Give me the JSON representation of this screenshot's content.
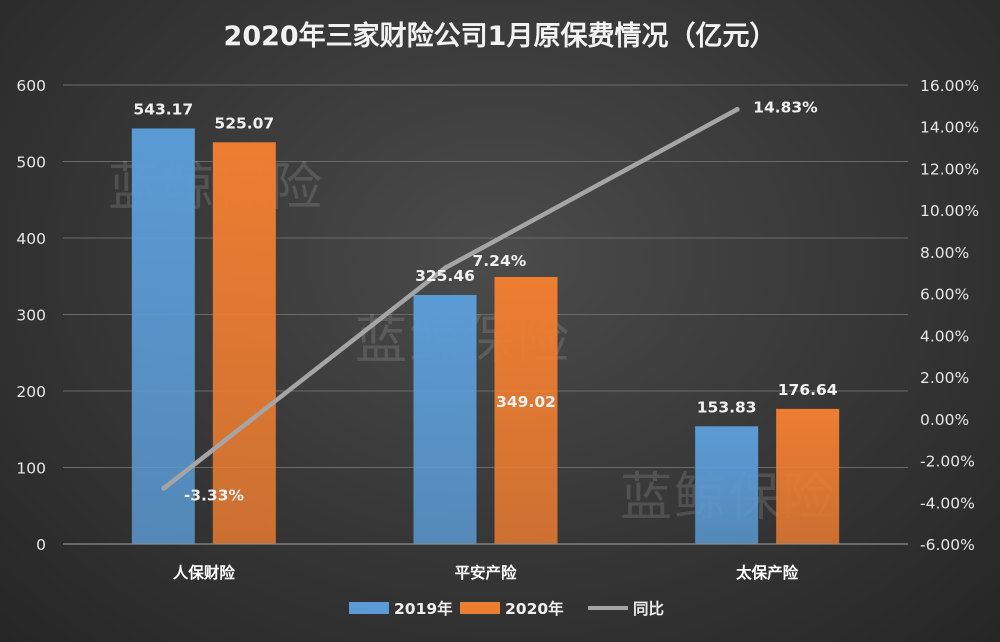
{
  "chart_data": {
    "type": "bar",
    "title": "2020年三家财险公司1月原保费情况（亿元）",
    "categories": [
      "人保财险",
      "平安产险",
      "太保产险"
    ],
    "series": [
      {
        "name": "2019年",
        "type": "bar",
        "axis": "left",
        "color": "#5b9bd5",
        "values": [
          543.17,
          325.46,
          153.83
        ],
        "labels": [
          "543.17",
          "325.46",
          "153.83"
        ]
      },
      {
        "name": "2020年",
        "type": "bar",
        "axis": "left",
        "color": "#ed7d31",
        "values": [
          525.07,
          349.02,
          176.64
        ],
        "labels": [
          "525.07",
          "349.02",
          "176.64"
        ]
      },
      {
        "name": "同比",
        "type": "line",
        "axis": "right",
        "color": "#a5a5a5",
        "values": [
          -3.33,
          7.24,
          14.83
        ],
        "labels": [
          "-3.33%",
          "7.24%",
          "14.83%"
        ]
      }
    ],
    "y_left": {
      "min": 0,
      "max": 600,
      "ticks": [
        "0",
        "100",
        "200",
        "300",
        "400",
        "500",
        "600"
      ]
    },
    "y_right": {
      "min": -6,
      "max": 16,
      "ticks": [
        "-6.00%",
        "-4.00%",
        "-2.00%",
        "0.00%",
        "2.00%",
        "4.00%",
        "6.00%",
        "8.00%",
        "10.00%",
        "12.00%",
        "14.00%",
        "16.00%"
      ]
    },
    "legend": {
      "position": "bottom",
      "items": [
        "2019年",
        "2020年",
        "同比"
      ]
    },
    "grid": true
  },
  "watermark": "蓝鲸保险",
  "colors": {
    "grid": "#6a6a6a",
    "axis": "#8c8c8c"
  }
}
